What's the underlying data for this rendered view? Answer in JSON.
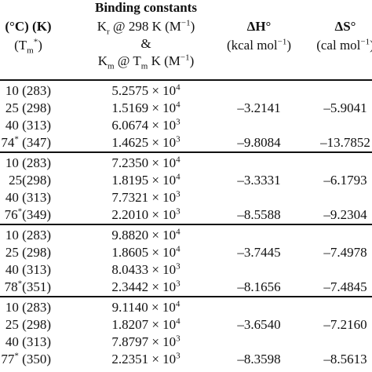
{
  "header": {
    "temp": {
      "line1": [
        {
          "text": "(°C) (K)",
          "style": "bold"
        }
      ],
      "line2": [
        {
          "text": "(T"
        },
        {
          "text": "m",
          "style": "sub"
        },
        {
          "text": "*",
          "style": "sup"
        },
        {
          "text": ")"
        }
      ]
    },
    "binding": {
      "line1": [
        {
          "text": "Binding constants",
          "style": "bold"
        }
      ],
      "line2": [
        {
          "text": "K"
        },
        {
          "text": "r",
          "style": "sub"
        },
        {
          "text": " @ 298 K (M"
        },
        {
          "text": "−1",
          "style": "sup"
        },
        {
          "text": ")"
        }
      ],
      "line3": [
        {
          "text": "&"
        }
      ],
      "line4": [
        {
          "text": "K"
        },
        {
          "text": "m",
          "style": "sub"
        },
        {
          "text": " @ T"
        },
        {
          "text": "m",
          "style": "sub"
        },
        {
          "text": " K (M"
        },
        {
          "text": "−1",
          "style": "sup"
        },
        {
          "text": ")"
        }
      ]
    },
    "dH": {
      "line1": [
        {
          "text": "ΔH°",
          "style": "bold"
        }
      ],
      "line2": [
        {
          "text": "(kcal mol"
        },
        {
          "text": "−1",
          "style": "sup"
        },
        {
          "text": ")"
        }
      ]
    },
    "dS": {
      "line1": [
        {
          "text": "ΔS°",
          "style": "bold"
        }
      ],
      "line2": [
        {
          "text": "(cal mol"
        },
        {
          "text": "−1",
          "style": "sup"
        },
        {
          "text": ")"
        }
      ]
    }
  },
  "groups": [
    {
      "rows": [
        {
          "temp": [
            {
              "text": "10 (283)"
            }
          ],
          "k": {
            "mantissa": "5.2575 × 10",
            "exp": "4"
          }
        },
        {
          "temp": [
            {
              "text": "25 (298)"
            }
          ],
          "k": {
            "mantissa": "1.5169 × 10",
            "exp": "4"
          },
          "dH": "–3.2141",
          "dS": "–5.9041"
        },
        {
          "temp": [
            {
              "text": "40 (313)"
            }
          ],
          "k": {
            "mantissa": "6.0674 × 10",
            "exp": "3"
          }
        },
        {
          "temp": [
            {
              "text": "74"
            },
            {
              "text": "*",
              "style": "sup"
            },
            {
              "text": " (347)"
            }
          ],
          "k": {
            "mantissa": "1.4625 × 10",
            "exp": "3"
          },
          "dH": "–9.8084",
          "dS": "–13.7852"
        }
      ]
    },
    {
      "rows": [
        {
          "temp": [
            {
              "text": "10 (283)"
            }
          ],
          "k": {
            "mantissa": "7.2350 × 10",
            "exp": "4"
          }
        },
        {
          "temp": [
            {
              "text": "25(298)"
            }
          ],
          "k": {
            "mantissa": "1.8195 × 10",
            "exp": "4"
          },
          "dH": "–3.3331",
          "dS": "–6.1793"
        },
        {
          "temp": [
            {
              "text": "40 (313)"
            }
          ],
          "k": {
            "mantissa": "7.7321 × 10",
            "exp": "3"
          }
        },
        {
          "temp": [
            {
              "text": "76"
            },
            {
              "text": "*",
              "style": "sup"
            },
            {
              "text": "(349)"
            }
          ],
          "k": {
            "mantissa": "2.2010 × 10",
            "exp": "3"
          },
          "dH": "–8.5588",
          "dS": "–9.2304"
        }
      ]
    },
    {
      "rows": [
        {
          "temp": [
            {
              "text": "10 (283)"
            }
          ],
          "k": {
            "mantissa": "9.8820 × 10",
            "exp": "4"
          }
        },
        {
          "temp": [
            {
              "text": "25 (298)"
            }
          ],
          "k": {
            "mantissa": "1.8605 × 10",
            "exp": "4"
          },
          "dH": "–3.7445",
          "dS": "–7.4978"
        },
        {
          "temp": [
            {
              "text": "40 (313)"
            }
          ],
          "k": {
            "mantissa": "8.0433 × 10",
            "exp": "3"
          }
        },
        {
          "temp": [
            {
              "text": "78"
            },
            {
              "text": "*",
              "style": "sup"
            },
            {
              "text": "(351)"
            }
          ],
          "k": {
            "mantissa": "2.3442 × 10",
            "exp": "3"
          },
          "dH": "–8.1656",
          "dS": "–7.4845"
        }
      ]
    },
    {
      "rows": [
        {
          "temp": [
            {
              "text": "10 (283)"
            }
          ],
          "k": {
            "mantissa": "9.1140 × 10",
            "exp": "4"
          }
        },
        {
          "temp": [
            {
              "text": "25 (298)"
            }
          ],
          "k": {
            "mantissa": "1.8207 × 10",
            "exp": "4"
          },
          "dH": "–3.6540",
          "dS": "–7.2160"
        },
        {
          "temp": [
            {
              "text": "40 (313)"
            }
          ],
          "k": {
            "mantissa": "7.8797 × 10",
            "exp": "3"
          }
        },
        {
          "temp": [
            {
              "text": "77"
            },
            {
              "text": "*",
              "style": "sup"
            },
            {
              "text": " (350)"
            }
          ],
          "k": {
            "mantissa": "2.2351 × 10",
            "exp": "3"
          },
          "dH": "–8.3598",
          "dS": "–8.5613"
        }
      ]
    }
  ]
}
